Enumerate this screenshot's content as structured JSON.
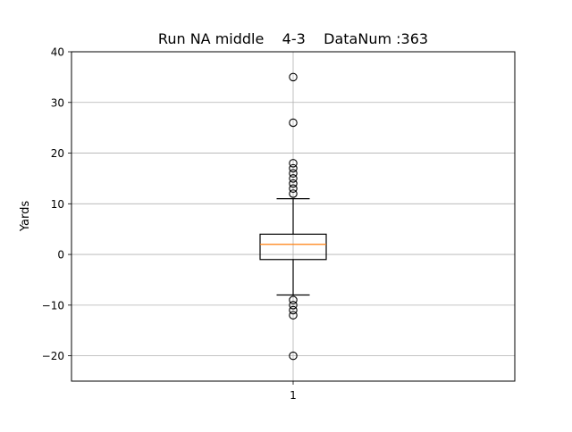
{
  "chart_data": {
    "type": "box",
    "title": "Run NA middle    4-3    DataNum :363",
    "xlabel": "",
    "ylabel": "Yards",
    "ylim": [
      -25,
      40
    ],
    "y_ticks": [
      40,
      30,
      20,
      10,
      0,
      -10,
      -20
    ],
    "y_tick_labels": [
      "40",
      "30",
      "20",
      "10",
      "0",
      "−10",
      "−20"
    ],
    "categories": [
      "1"
    ],
    "grid": true,
    "box": {
      "q1": -1,
      "median": 2,
      "q3": 4,
      "whisker_low": -8,
      "whisker_high": 11,
      "outliers": [
        35,
        26,
        18,
        17,
        16,
        15,
        14,
        13,
        12,
        -9,
        -10,
        -11,
        -12,
        -20
      ]
    },
    "colors": {
      "box": "#000000",
      "median": "#ff7f0e",
      "grid": "#b0b0b0"
    }
  }
}
